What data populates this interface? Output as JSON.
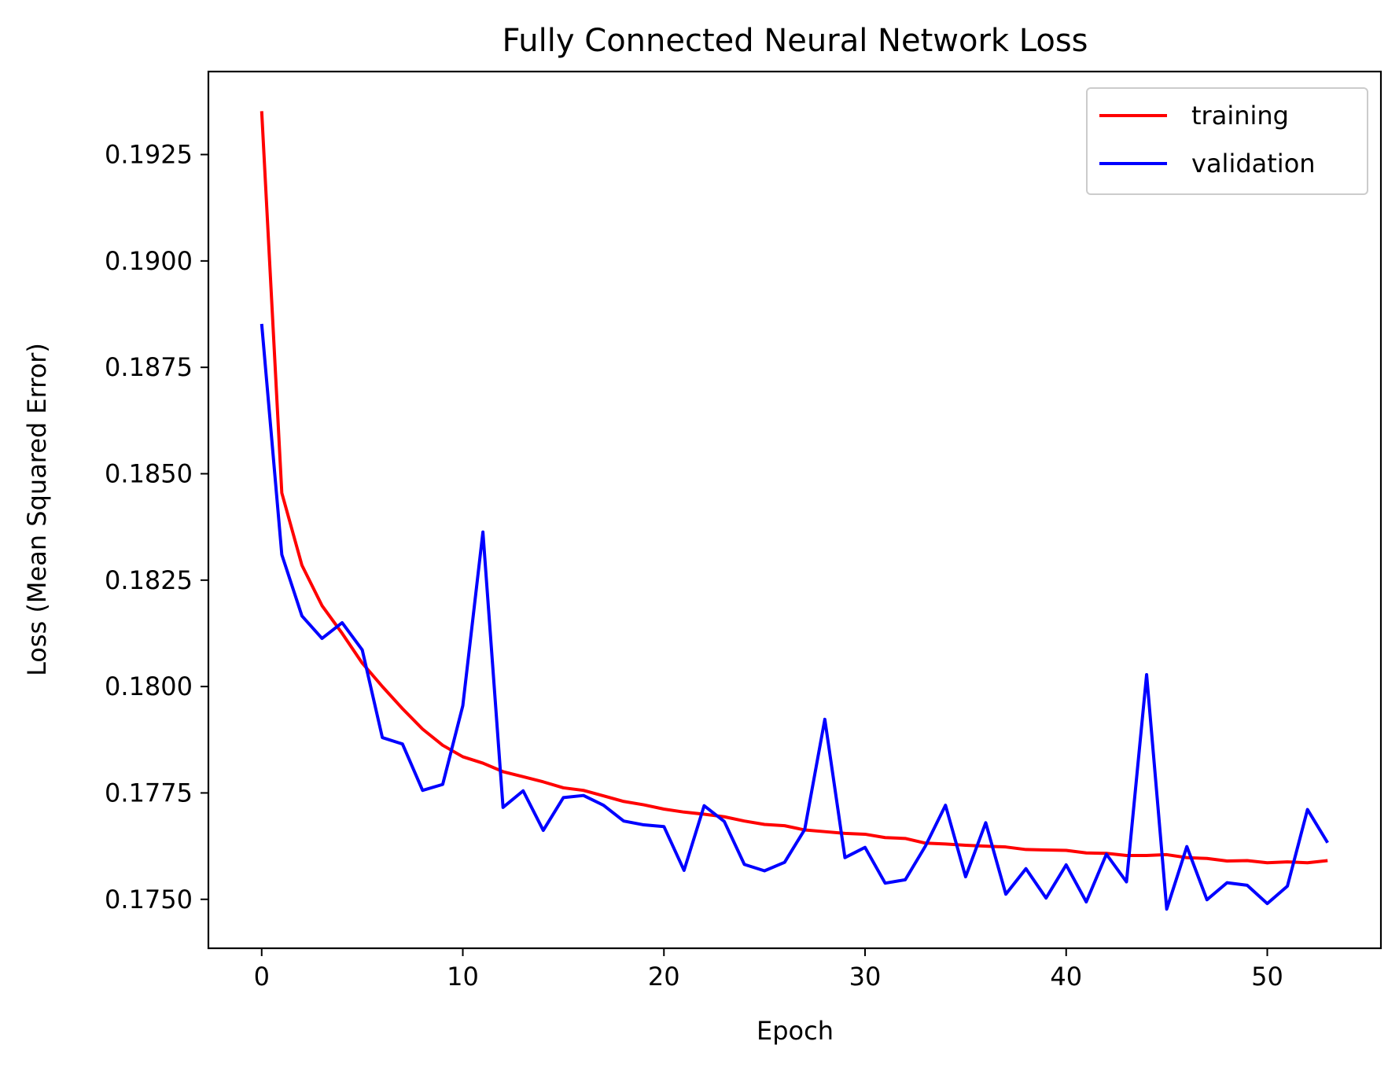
{
  "chart_data": {
    "type": "line",
    "title": "Fully Connected Neural Network Loss",
    "xlabel": "Epoch",
    "ylabel": "Loss (Mean Squared Error)",
    "xlim": [
      -2.65,
      55.65
    ],
    "ylim": [
      0.17385,
      0.19445
    ],
    "x_ticks": [
      0,
      10,
      20,
      30,
      40,
      50
    ],
    "x_tick_labels": [
      "0",
      "10",
      "20",
      "30",
      "40",
      "50"
    ],
    "y_ticks": [
      0.175,
      0.1775,
      0.18,
      0.1825,
      0.185,
      0.1875,
      0.19,
      0.1925
    ],
    "y_tick_labels": [
      "0.1750",
      "0.1775",
      "0.1800",
      "0.1825",
      "0.1850",
      "0.1875",
      "0.1900",
      "0.1925"
    ],
    "grid": false,
    "legend_position": "top-right",
    "x": [
      0,
      1,
      2,
      3,
      4,
      5,
      6,
      7,
      8,
      9,
      10,
      11,
      12,
      13,
      14,
      15,
      16,
      17,
      18,
      19,
      20,
      21,
      22,
      23,
      24,
      25,
      26,
      27,
      28,
      29,
      30,
      31,
      32,
      33,
      34,
      35,
      36,
      37,
      38,
      39,
      40,
      41,
      42,
      43,
      44,
      45,
      46,
      47,
      48,
      49,
      50,
      51,
      52,
      53
    ],
    "series": [
      {
        "name": "training",
        "color": "#ff0000",
        "values": [
          0.19352,
          0.18455,
          0.18285,
          0.1819,
          0.18125,
          0.18055,
          0.18,
          0.17948,
          0.179,
          0.17862,
          0.17835,
          0.1782,
          0.178,
          0.17788,
          0.17776,
          0.17762,
          0.17756,
          0.17743,
          0.1773,
          0.17722,
          0.17712,
          0.17705,
          0.177,
          0.17694,
          0.17684,
          0.17676,
          0.17673,
          0.17663,
          0.17659,
          0.17655,
          0.17653,
          0.17645,
          0.17643,
          0.17632,
          0.1763,
          0.17627,
          0.17625,
          0.17623,
          0.17617,
          0.17616,
          0.17615,
          0.17609,
          0.17608,
          0.17603,
          0.17603,
          0.17605,
          0.17598,
          0.17596,
          0.1759,
          0.17591,
          0.17586,
          0.17588,
          0.17586,
          0.17591
        ]
      },
      {
        "name": "validation",
        "color": "#0000ff",
        "values": [
          0.18852,
          0.1831,
          0.18166,
          0.18113,
          0.1815,
          0.18086,
          0.1788,
          0.17865,
          0.17756,
          0.1777,
          0.17955,
          0.18363,
          0.17716,
          0.17755,
          0.17662,
          0.17739,
          0.17744,
          0.17721,
          0.17684,
          0.17675,
          0.17671,
          0.17568,
          0.1772,
          0.17683,
          0.17582,
          0.17567,
          0.17587,
          0.17664,
          0.17923,
          0.17598,
          0.17622,
          0.17538,
          0.17546,
          0.17625,
          0.17721,
          0.17553,
          0.1768,
          0.17512,
          0.17572,
          0.17503,
          0.17581,
          0.17494,
          0.17606,
          0.17541,
          0.18028,
          0.17477,
          0.17624,
          0.17499,
          0.17539,
          0.17533,
          0.1749,
          0.17531,
          0.17711,
          0.17633
        ]
      }
    ]
  }
}
